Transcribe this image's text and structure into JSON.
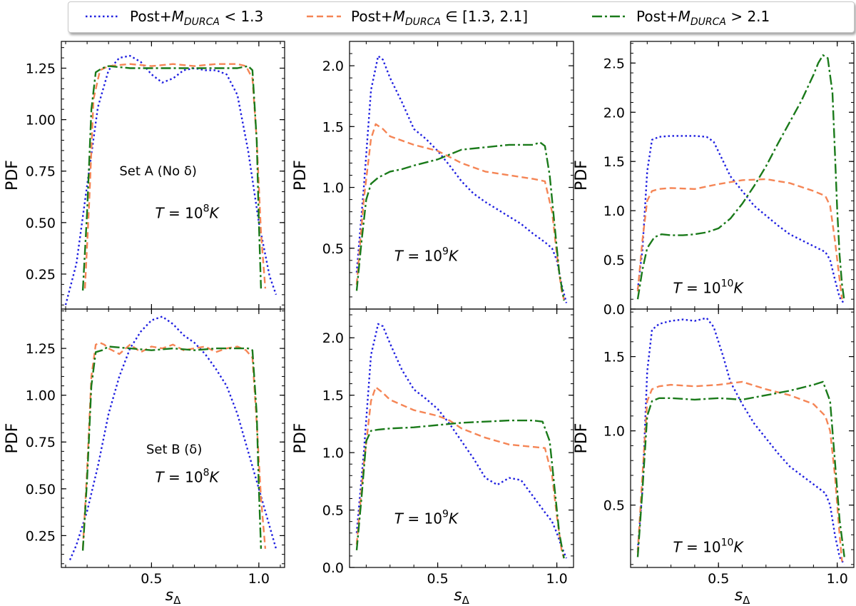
{
  "legend": {
    "entries": [
      {
        "prefix": "Post+",
        "symbol": "M",
        "sub": "DURCA",
        "rel": " < 1.3"
      },
      {
        "prefix": "Post+",
        "symbol": "M",
        "sub": "DURCA",
        "rel": " ∈ [1.3, 2.1]"
      },
      {
        "prefix": "Post+",
        "symbol": "M",
        "sub": "DURCA",
        "rel": " > 2.1"
      }
    ]
  },
  "colors": {
    "low": "#1f1fe0",
    "mid": "#f58555",
    "high": "#1a7a1a"
  },
  "chart_data": [
    {
      "type": "line",
      "id": "A8",
      "ylabel": "PDF",
      "xlabel": "",
      "xlim": [
        0.08,
        1.12
      ],
      "ylim": [
        0.08,
        1.38
      ],
      "xticks": [
        0.5,
        1.0
      ],
      "xtick_labels": [
        "",
        ""
      ],
      "yticks": [
        0.25,
        0.5,
        0.75,
        1.0,
        1.25
      ],
      "ytick_labels": [
        "0.25",
        "0.50",
        "0.75",
        "1.00",
        "1.25"
      ],
      "annotation": "Set A (No δ)",
      "temp": {
        "base": "10",
        "exp": "8"
      },
      "series": [
        {
          "name": "low",
          "x": [
            0.1,
            0.15,
            0.2,
            0.25,
            0.3,
            0.35,
            0.4,
            0.45,
            0.5,
            0.55,
            0.6,
            0.65,
            0.7,
            0.75,
            0.8,
            0.85,
            0.9,
            0.95,
            1.0,
            1.05,
            1.08
          ],
          "y": [
            0.1,
            0.3,
            0.68,
            1.06,
            1.24,
            1.3,
            1.31,
            1.28,
            1.22,
            1.18,
            1.2,
            1.24,
            1.25,
            1.24,
            1.24,
            1.22,
            1.12,
            0.85,
            0.5,
            0.24,
            0.15
          ]
        },
        {
          "name": "mid",
          "x": [
            0.19,
            0.21,
            0.23,
            0.26,
            0.3,
            0.4,
            0.5,
            0.6,
            0.7,
            0.8,
            0.9,
            0.94,
            0.97,
            0.99,
            1.01,
            1.03
          ],
          "y": [
            0.18,
            0.6,
            1.1,
            1.24,
            1.26,
            1.27,
            1.26,
            1.27,
            1.26,
            1.27,
            1.27,
            1.26,
            1.2,
            0.9,
            0.45,
            0.18
          ]
        },
        {
          "name": "high",
          "x": [
            0.18,
            0.2,
            0.22,
            0.24,
            0.27,
            0.3,
            0.4,
            0.5,
            0.6,
            0.7,
            0.8,
            0.9,
            0.95,
            0.97,
            0.99,
            1.0,
            1.01
          ],
          "y": [
            0.17,
            0.55,
            1.05,
            1.23,
            1.25,
            1.26,
            1.25,
            1.25,
            1.25,
            1.25,
            1.25,
            1.25,
            1.26,
            1.24,
            0.9,
            0.5,
            0.18
          ]
        }
      ]
    },
    {
      "type": "line",
      "id": "A9",
      "ylabel": "PDF",
      "xlabel": "",
      "xlim": [
        0.13,
        1.07
      ],
      "ylim": [
        0.0,
        2.2
      ],
      "xticks": [
        0.5,
        1.0
      ],
      "xtick_labels": [
        "",
        ""
      ],
      "yticks": [
        0.5,
        1.0,
        1.5,
        2.0
      ],
      "ytick_labels": [
        "0.5",
        "1.0",
        "1.5",
        "2.0"
      ],
      "annotation": "",
      "temp": {
        "base": "10",
        "exp": "9"
      },
      "series": [
        {
          "name": "low",
          "x": [
            0.16,
            0.19,
            0.22,
            0.25,
            0.27,
            0.3,
            0.35,
            0.4,
            0.45,
            0.5,
            0.55,
            0.6,
            0.65,
            0.7,
            0.75,
            0.8,
            0.85,
            0.9,
            0.95,
            0.98,
            1.0,
            1.02,
            1.04
          ],
          "y": [
            0.3,
            1.0,
            1.8,
            2.08,
            2.05,
            1.9,
            1.7,
            1.48,
            1.4,
            1.3,
            1.18,
            1.05,
            0.95,
            0.88,
            0.82,
            0.76,
            0.7,
            0.62,
            0.55,
            0.5,
            0.4,
            0.2,
            0.05
          ]
        },
        {
          "name": "mid",
          "x": [
            0.16,
            0.19,
            0.22,
            0.24,
            0.27,
            0.3,
            0.4,
            0.5,
            0.55,
            0.6,
            0.7,
            0.8,
            0.9,
            0.95,
            0.98,
            1.0,
            1.02,
            1.03
          ],
          "y": [
            0.2,
            0.9,
            1.4,
            1.52,
            1.48,
            1.42,
            1.35,
            1.3,
            1.25,
            1.2,
            1.13,
            1.1,
            1.07,
            1.05,
            0.8,
            0.45,
            0.15,
            0.08
          ]
        },
        {
          "name": "high",
          "x": [
            0.16,
            0.18,
            0.2,
            0.22,
            0.25,
            0.3,
            0.35,
            0.4,
            0.5,
            0.55,
            0.6,
            0.7,
            0.8,
            0.85,
            0.9,
            0.93,
            0.95,
            0.97,
            0.99,
            1.01,
            1.03
          ],
          "y": [
            0.15,
            0.55,
            0.9,
            1.03,
            1.08,
            1.13,
            1.15,
            1.18,
            1.23,
            1.27,
            1.31,
            1.33,
            1.35,
            1.35,
            1.35,
            1.37,
            1.34,
            1.1,
            0.7,
            0.3,
            0.07
          ]
        }
      ]
    },
    {
      "type": "line",
      "id": "A10",
      "ylabel": "PDF",
      "xlabel": "",
      "xlim": [
        0.13,
        1.07
      ],
      "ylim": [
        0.0,
        2.72
      ],
      "xticks": [
        0.5,
        1.0
      ],
      "xtick_labels": [
        "",
        ""
      ],
      "yticks": [
        0.0,
        0.5,
        1.0,
        1.5,
        2.0,
        2.5
      ],
      "ytick_labels": [
        "0.0",
        "0.5",
        "1.0",
        "1.5",
        "2.0",
        "2.5"
      ],
      "annotation": "",
      "temp": {
        "base": "10",
        "exp": "10"
      },
      "series": [
        {
          "name": "low",
          "x": [
            0.16,
            0.18,
            0.2,
            0.22,
            0.25,
            0.3,
            0.35,
            0.4,
            0.45,
            0.48,
            0.52,
            0.55,
            0.6,
            0.65,
            0.7,
            0.75,
            0.8,
            0.85,
            0.9,
            0.95,
            0.97,
            0.99,
            1.01,
            1.03
          ],
          "y": [
            0.2,
            0.6,
            1.4,
            1.72,
            1.75,
            1.76,
            1.76,
            1.76,
            1.75,
            1.7,
            1.5,
            1.35,
            1.2,
            1.05,
            0.95,
            0.85,
            0.76,
            0.7,
            0.64,
            0.58,
            0.5,
            0.3,
            0.12,
            0.05
          ]
        },
        {
          "name": "mid",
          "x": [
            0.16,
            0.18,
            0.2,
            0.22,
            0.25,
            0.3,
            0.4,
            0.5,
            0.6,
            0.7,
            0.8,
            0.9,
            0.95,
            0.97,
            0.99,
            1.01,
            1.02
          ],
          "y": [
            0.18,
            0.7,
            1.1,
            1.2,
            1.22,
            1.23,
            1.22,
            1.27,
            1.31,
            1.32,
            1.28,
            1.2,
            1.15,
            1.05,
            0.7,
            0.3,
            0.1
          ]
        },
        {
          "name": "high",
          "x": [
            0.16,
            0.18,
            0.2,
            0.23,
            0.26,
            0.3,
            0.35,
            0.4,
            0.45,
            0.5,
            0.55,
            0.6,
            0.65,
            0.7,
            0.75,
            0.8,
            0.85,
            0.9,
            0.92,
            0.94,
            0.96,
            0.98,
            0.99,
            1.0,
            1.01,
            1.02,
            1.03
          ],
          "y": [
            0.1,
            0.4,
            0.62,
            0.73,
            0.76,
            0.75,
            0.75,
            0.76,
            0.78,
            0.82,
            0.92,
            1.07,
            1.25,
            1.45,
            1.68,
            1.9,
            2.12,
            2.38,
            2.5,
            2.58,
            2.55,
            2.2,
            1.6,
            1.0,
            0.55,
            0.25,
            0.08
          ]
        }
      ]
    },
    {
      "type": "line",
      "id": "B8",
      "ylabel": "PDF",
      "xlabel": "s_Δ",
      "xlim": [
        0.08,
        1.12
      ],
      "ylim": [
        0.08,
        1.46
      ],
      "xticks": [
        0.5,
        1.0
      ],
      "xtick_labels": [
        "0.5",
        "1.0"
      ],
      "yticks": [
        0.25,
        0.5,
        0.75,
        1.0,
        1.25
      ],
      "ytick_labels": [
        "0.25",
        "0.50",
        "0.75",
        "1.00",
        "1.25"
      ],
      "annotation": "Set B (δ)",
      "temp": {
        "base": "10",
        "exp": "8"
      },
      "series": [
        {
          "name": "low",
          "x": [
            0.12,
            0.15,
            0.2,
            0.25,
            0.3,
            0.35,
            0.4,
            0.45,
            0.5,
            0.55,
            0.6,
            0.65,
            0.7,
            0.75,
            0.8,
            0.85,
            0.9,
            0.95,
            1.0,
            1.05,
            1.08
          ],
          "y": [
            0.12,
            0.2,
            0.38,
            0.62,
            0.9,
            1.1,
            1.25,
            1.34,
            1.4,
            1.42,
            1.38,
            1.32,
            1.28,
            1.22,
            1.14,
            1.05,
            0.9,
            0.7,
            0.5,
            0.3,
            0.18
          ]
        },
        {
          "name": "mid",
          "x": [
            0.18,
            0.2,
            0.22,
            0.24,
            0.26,
            0.28,
            0.3,
            0.35,
            0.4,
            0.45,
            0.5,
            0.55,
            0.6,
            0.65,
            0.7,
            0.75,
            0.8,
            0.85,
            0.9,
            0.94,
            0.97,
            0.99,
            1.01,
            1.03
          ],
          "y": [
            0.18,
            0.6,
            1.1,
            1.27,
            1.28,
            1.27,
            1.25,
            1.22,
            1.27,
            1.23,
            1.26,
            1.25,
            1.27,
            1.24,
            1.25,
            1.26,
            1.23,
            1.25,
            1.26,
            1.24,
            1.2,
            0.85,
            0.45,
            0.18
          ]
        },
        {
          "name": "high",
          "x": [
            0.18,
            0.2,
            0.22,
            0.24,
            0.27,
            0.3,
            0.4,
            0.5,
            0.6,
            0.7,
            0.8,
            0.9,
            0.95,
            0.97,
            0.99,
            1.0,
            1.01
          ],
          "y": [
            0.17,
            0.55,
            1.05,
            1.23,
            1.24,
            1.26,
            1.25,
            1.24,
            1.25,
            1.24,
            1.25,
            1.25,
            1.25,
            1.24,
            0.9,
            0.5,
            0.18
          ]
        }
      ]
    },
    {
      "type": "line",
      "id": "B9",
      "ylabel": "PDF",
      "xlabel": "s_Δ",
      "xlim": [
        0.13,
        1.07
      ],
      "ylim": [
        0.0,
        2.25
      ],
      "xticks": [
        0.5,
        1.0
      ],
      "xtick_labels": [
        "0.5",
        "1.0"
      ],
      "yticks": [
        0.0,
        0.5,
        1.0,
        1.5,
        2.0
      ],
      "ytick_labels": [
        "0.0",
        "0.5",
        "1.0",
        "1.5",
        "2.0"
      ],
      "annotation": "",
      "temp": {
        "base": "10",
        "exp": "9"
      },
      "series": [
        {
          "name": "low",
          "x": [
            0.16,
            0.19,
            0.22,
            0.25,
            0.27,
            0.3,
            0.35,
            0.4,
            0.45,
            0.5,
            0.55,
            0.6,
            0.65,
            0.7,
            0.75,
            0.8,
            0.85,
            0.9,
            0.95,
            0.98,
            1.0,
            1.02,
            1.04
          ],
          "y": [
            0.3,
            1.0,
            1.85,
            2.12,
            2.1,
            1.95,
            1.72,
            1.55,
            1.47,
            1.38,
            1.25,
            1.1,
            0.95,
            0.78,
            0.72,
            0.78,
            0.76,
            0.62,
            0.48,
            0.4,
            0.3,
            0.18,
            0.08
          ]
        },
        {
          "name": "mid",
          "x": [
            0.16,
            0.19,
            0.22,
            0.24,
            0.27,
            0.3,
            0.4,
            0.5,
            0.55,
            0.6,
            0.7,
            0.8,
            0.9,
            0.95,
            0.98,
            1.0,
            1.02,
            1.03
          ],
          "y": [
            0.2,
            0.9,
            1.45,
            1.57,
            1.52,
            1.46,
            1.37,
            1.32,
            1.28,
            1.21,
            1.13,
            1.07,
            1.05,
            1.04,
            0.8,
            0.45,
            0.15,
            0.08
          ]
        },
        {
          "name": "high",
          "x": [
            0.16,
            0.18,
            0.2,
            0.22,
            0.25,
            0.3,
            0.4,
            0.5,
            0.6,
            0.7,
            0.8,
            0.9,
            0.94,
            0.97,
            0.99,
            1.01,
            1.03
          ],
          "y": [
            0.15,
            0.6,
            1.1,
            1.19,
            1.2,
            1.21,
            1.22,
            1.24,
            1.26,
            1.27,
            1.28,
            1.28,
            1.27,
            1.1,
            0.7,
            0.3,
            0.08
          ]
        }
      ]
    },
    {
      "type": "line",
      "id": "B10",
      "ylabel": "PDF",
      "xlabel": "s_Δ",
      "xlim": [
        0.13,
        1.07
      ],
      "ylim": [
        0.08,
        1.82
      ],
      "xticks": [
        0.5,
        1.0
      ],
      "xtick_labels": [
        "0.5",
        "1.0"
      ],
      "yticks": [
        0.5,
        1.0,
        1.5
      ],
      "ytick_labels": [
        "0.5",
        "1.0",
        "1.5"
      ],
      "annotation": "",
      "temp": {
        "base": "10",
        "exp": "10"
      },
      "series": [
        {
          "name": "low",
          "x": [
            0.16,
            0.18,
            0.2,
            0.22,
            0.25,
            0.3,
            0.35,
            0.4,
            0.45,
            0.48,
            0.52,
            0.55,
            0.6,
            0.65,
            0.7,
            0.75,
            0.8,
            0.85,
            0.9,
            0.95,
            0.97,
            0.99,
            1.01,
            1.03
          ],
          "y": [
            0.2,
            0.6,
            1.4,
            1.68,
            1.72,
            1.74,
            1.75,
            1.74,
            1.76,
            1.7,
            1.5,
            1.33,
            1.18,
            1.05,
            0.95,
            0.85,
            0.76,
            0.7,
            0.64,
            0.58,
            0.5,
            0.3,
            0.15,
            0.1
          ]
        },
        {
          "name": "mid",
          "x": [
            0.16,
            0.18,
            0.2,
            0.22,
            0.25,
            0.3,
            0.4,
            0.5,
            0.6,
            0.7,
            0.8,
            0.9,
            0.95,
            0.97,
            0.99,
            1.01,
            1.02
          ],
          "y": [
            0.18,
            0.7,
            1.2,
            1.28,
            1.3,
            1.31,
            1.3,
            1.31,
            1.33,
            1.28,
            1.24,
            1.18,
            1.1,
            1.0,
            0.7,
            0.3,
            0.12
          ]
        },
        {
          "name": "high",
          "x": [
            0.16,
            0.18,
            0.2,
            0.22,
            0.25,
            0.3,
            0.4,
            0.5,
            0.6,
            0.7,
            0.8,
            0.9,
            0.94,
            0.97,
            0.99,
            1.01,
            1.03
          ],
          "y": [
            0.15,
            0.6,
            1.1,
            1.2,
            1.22,
            1.22,
            1.21,
            1.22,
            1.21,
            1.24,
            1.27,
            1.31,
            1.33,
            1.2,
            0.8,
            0.4,
            0.15
          ]
        }
      ]
    }
  ]
}
